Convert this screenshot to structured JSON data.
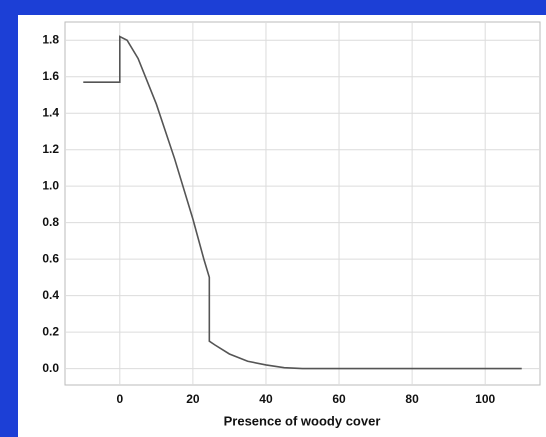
{
  "chart_data": {
    "type": "line",
    "x_label": "Presence of woody cover",
    "x": [
      -10,
      0,
      0,
      2,
      5,
      10,
      15,
      20,
      23,
      24.5,
      24.5,
      26,
      30,
      35,
      40,
      45,
      50,
      60,
      110
    ],
    "series": [
      {
        "color": "#555555",
        "values": [
          1.57,
          1.57,
          1.82,
          1.8,
          1.7,
          1.45,
          1.15,
          0.82,
          0.6,
          0.5,
          0.15,
          0.13,
          0.08,
          0.04,
          0.02,
          0.005,
          0,
          0,
          0
        ]
      }
    ],
    "xlim": [
      -15,
      115
    ],
    "xticks": [
      0,
      20,
      40,
      60,
      80,
      100
    ],
    "ylim": [
      -0.09,
      1.9
    ],
    "yticks": [
      {
        "value": 0,
        "label": "0.0"
      },
      0.2,
      0.4,
      0.6,
      0.8,
      {
        "value": 1,
        "label": "1.0"
      },
      1.2,
      1.4,
      1.6,
      1.8
    ],
    "grid": true
  }
}
